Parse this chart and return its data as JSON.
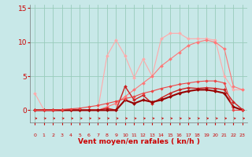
{
  "x": [
    0,
    1,
    2,
    3,
    4,
    5,
    6,
    7,
    8,
    9,
    10,
    11,
    12,
    13,
    14,
    15,
    16,
    17,
    18,
    19,
    20,
    21,
    22,
    23
  ],
  "series_y": [
    [
      2.5,
      0.1,
      0.1,
      0.1,
      0.1,
      0.1,
      0.1,
      0.1,
      8.0,
      10.3,
      8.0,
      4.8,
      7.5,
      5.0,
      10.5,
      11.3,
      11.3,
      10.5,
      10.5,
      10.5,
      10.3,
      5.0,
      3.0,
      3.0
    ],
    [
      0.0,
      0.0,
      0.0,
      0.0,
      0.0,
      0.0,
      0.0,
      0.0,
      0.5,
      1.0,
      2.0,
      3.0,
      4.0,
      5.0,
      6.5,
      7.5,
      8.5,
      9.5,
      10.0,
      10.3,
      10.0,
      9.0,
      3.5,
      3.0
    ],
    [
      0.0,
      0.0,
      0.0,
      0.0,
      0.0,
      0.0,
      0.0,
      0.0,
      0.3,
      0.0,
      3.5,
      1.5,
      2.2,
      1.0,
      1.8,
      2.5,
      3.0,
      3.3,
      3.2,
      3.3,
      3.2,
      3.0,
      1.2,
      0.1
    ],
    [
      0.0,
      0.0,
      0.0,
      0.0,
      0.0,
      0.0,
      0.0,
      0.0,
      0.0,
      0.0,
      1.5,
      1.0,
      1.5,
      1.2,
      1.5,
      2.0,
      2.5,
      2.8,
      3.0,
      3.0,
      2.8,
      2.5,
      0.5,
      0.0
    ],
    [
      0.0,
      0.0,
      0.0,
      0.1,
      0.2,
      0.3,
      0.5,
      0.7,
      1.0,
      1.3,
      1.7,
      2.0,
      2.5,
      2.8,
      3.2,
      3.5,
      3.8,
      4.0,
      4.2,
      4.3,
      4.3,
      4.0,
      0.0,
      0.0
    ]
  ],
  "colors": [
    "#ffaaaa",
    "#ff7777",
    "#cc2222",
    "#990000",
    "#ee4444"
  ],
  "linewidths": [
    0.8,
    0.8,
    1.0,
    1.5,
    0.8
  ],
  "markersizes": [
    2.0,
    2.0,
    2.0,
    2.0,
    1.8
  ],
  "xlabel": "Vent moyen/en rafales ( kn/h )",
  "ylim": [
    -1.8,
    15.5
  ],
  "xlim": [
    -0.5,
    23.5
  ],
  "yticks": [
    0,
    5,
    10,
    15
  ],
  "xticks": [
    0,
    1,
    2,
    3,
    4,
    5,
    6,
    7,
    8,
    9,
    10,
    11,
    12,
    13,
    14,
    15,
    16,
    17,
    18,
    19,
    20,
    21,
    22,
    23
  ],
  "bg_color": "#c8e8e8",
  "grid_color": "#99ccbb",
  "tick_color": "#cc0000",
  "label_color": "#cc0000"
}
